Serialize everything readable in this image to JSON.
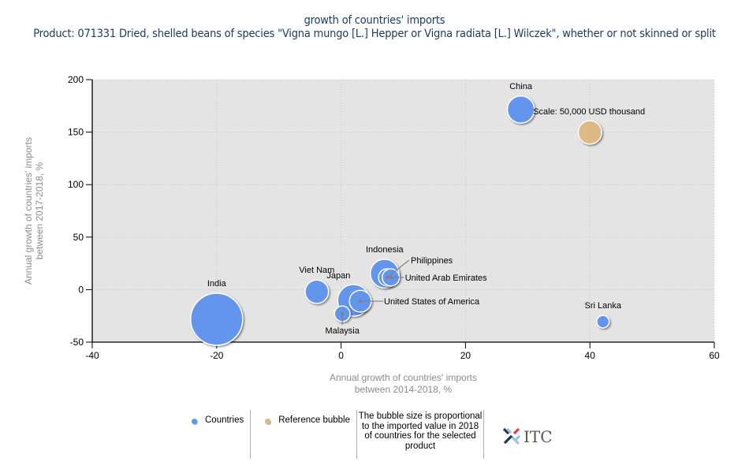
{
  "title": {
    "line1": "growth of countries' imports",
    "line2": "Product: 071331 Dried, shelled beans of species \"Vigna mungo [L.] Hepper or Vigna radiata [L.] Wilczek\", whether or not skinned or split"
  },
  "chart_data": {
    "type": "scatter",
    "subtype": "bubble",
    "title": "growth of countries' imports",
    "subtitle": "Product: 071331 Dried, shelled beans of species \"Vigna mungo [L.] Hepper or Vigna radiata [L.] Wilczek\", whether or not skinned or split",
    "xlabel": "Annual growth of countries' imports between 2014-2018, %",
    "xlabel_lines": [
      "Annual growth of countries' imports",
      "between 2014-2018, %"
    ],
    "ylabel": "Annual growth of countries' imports between 2017-2018, %",
    "ylabel_lines": [
      "Annual growth of countries' imports",
      "between 2017-2018, %"
    ],
    "xlim": [
      -40,
      60
    ],
    "ylim": [
      -50,
      200
    ],
    "xticks": [
      -40,
      -20,
      0,
      20,
      40,
      60
    ],
    "yticks": [
      -50,
      0,
      50,
      100,
      150,
      200
    ],
    "grid": true,
    "plot_background": "#e4e4e4",
    "series": [
      {
        "name": "Countries",
        "color": "#6495ed",
        "points": [
          {
            "label": "India",
            "x": -20.0,
            "y": -28.2,
            "size_rel": 1.0,
            "label_pos": "top"
          },
          {
            "label": "China",
            "x": 28.9,
            "y": 171.5,
            "size_rel": 0.52,
            "label_pos": "top"
          },
          {
            "label": "Viet Nam",
            "x": -3.9,
            "y": -2.0,
            "size_rel": 0.45,
            "label_pos": "top"
          },
          {
            "label": "Japan",
            "x": 2.0,
            "y": -10.2,
            "size_rel": 0.61,
            "label_pos": "top-left"
          },
          {
            "label": "United States of America",
            "x": 3.1,
            "y": -11.0,
            "size_rel": 0.42,
            "label_pos": "leader-right"
          },
          {
            "label": "Malaysia",
            "x": 0.2,
            "y": -23.0,
            "size_rel": 0.3,
            "label_pos": "leader-bottom"
          },
          {
            "label": "Indonesia",
            "x": 7.0,
            "y": 15.3,
            "size_rel": 0.55,
            "label_pos": "top"
          },
          {
            "label": "Philippines",
            "x": 7.4,
            "y": 11.6,
            "size_rel": 0.33,
            "label_pos": "leader-top-right"
          },
          {
            "label": "United Arab Emirates",
            "x": 8.0,
            "y": 11.6,
            "size_rel": 0.33,
            "label_pos": "leader-right"
          },
          {
            "label": "Sri Lanka",
            "x": 42.1,
            "y": -30.5,
            "size_rel": 0.24,
            "label_pos": "top"
          }
        ]
      },
      {
        "name": "Reference bubble",
        "color": "#deb887",
        "points": [
          {
            "label": "Scale: 50,000 USD thousand",
            "x": 40.0,
            "y": 149.7,
            "size_rel": 0.45,
            "label_pos": "top-left"
          }
        ]
      }
    ],
    "legend": {
      "placement": "bottom",
      "entries": [
        "Countries",
        "Reference bubble"
      ],
      "note": "The bubble size is proportional to the imported value in 2018 of countries for the selected product"
    }
  },
  "legend": {
    "countries": "Countries",
    "reference": "Reference bubble",
    "note": "The bubble size is proportional to the imported value in 2018 of countries for the selected product",
    "countries_color": "#6495ed",
    "reference_color": "#deb887"
  },
  "logo": {
    "text": "ITC",
    "icon": "itc-logo-icon"
  }
}
